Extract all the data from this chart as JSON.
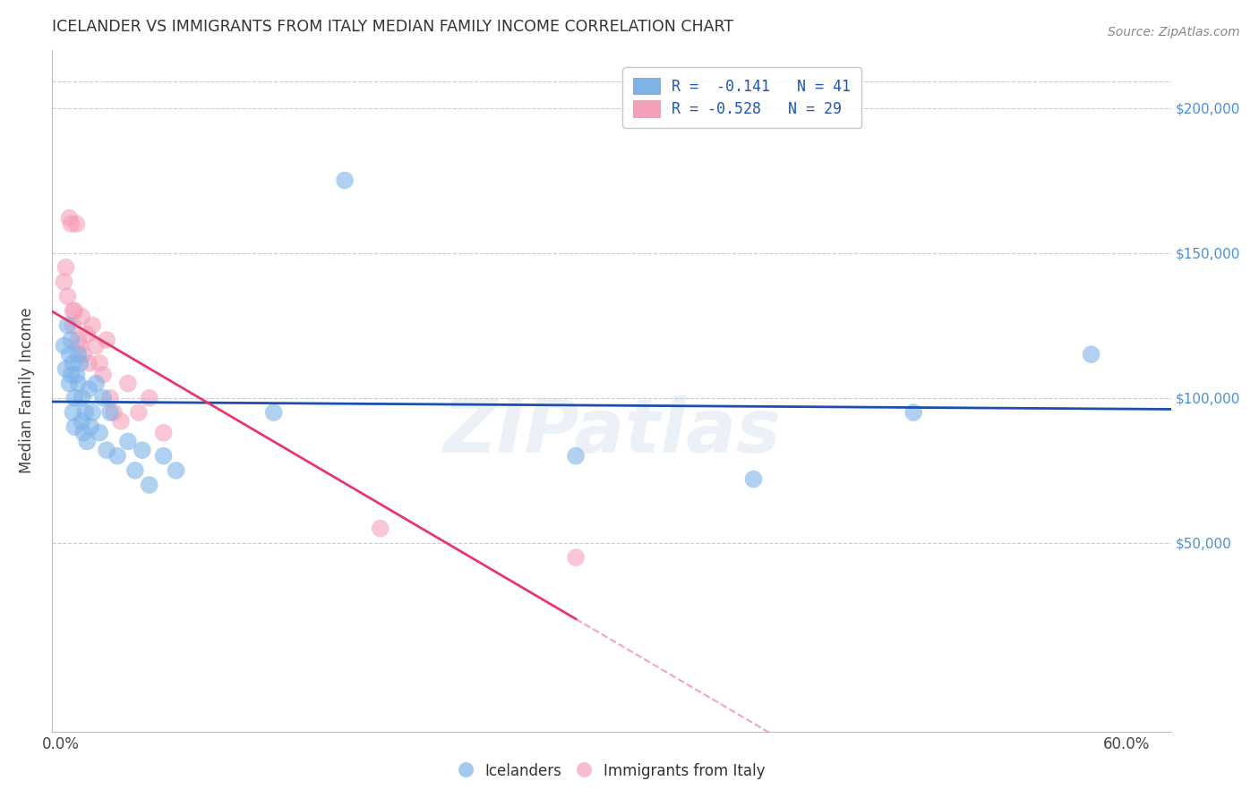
{
  "title": "ICELANDER VS IMMIGRANTS FROM ITALY MEDIAN FAMILY INCOME CORRELATION CHART",
  "source": "Source: ZipAtlas.com",
  "xlabel_edge_labels": [
    "0.0%",
    "60.0%"
  ],
  "xlabel_edge_vals": [
    0.0,
    0.6
  ],
  "xlabel_minor_vals": [
    0.1,
    0.2,
    0.3,
    0.4,
    0.5
  ],
  "ylabel_ticks": [
    "$50,000",
    "$100,000",
    "$150,000",
    "$200,000"
  ],
  "ylabel_vals": [
    50000,
    100000,
    150000,
    200000
  ],
  "xlim": [
    -0.005,
    0.625
  ],
  "ylim": [
    -15000,
    220000
  ],
  "watermark": "ZIPatlas",
  "legend_blue_r": "R =  -0.141",
  "legend_blue_n": "N = 41",
  "legend_pink_r": "R = -0.528",
  "legend_pink_n": "N = 29",
  "legend_blue_label": "Icelanders",
  "legend_pink_label": "Immigrants from Italy",
  "blue_color": "#7EB3E8",
  "pink_color": "#F4A0B8",
  "blue_line_color": "#1A4FAA",
  "pink_line_color": "#E8386A",
  "blue_x": [
    0.002,
    0.003,
    0.004,
    0.005,
    0.005,
    0.006,
    0.006,
    0.007,
    0.007,
    0.008,
    0.008,
    0.009,
    0.01,
    0.01,
    0.011,
    0.012,
    0.012,
    0.013,
    0.014,
    0.015,
    0.016,
    0.017,
    0.018,
    0.02,
    0.022,
    0.024,
    0.026,
    0.028,
    0.032,
    0.038,
    0.042,
    0.046,
    0.05,
    0.058,
    0.065,
    0.12,
    0.16,
    0.29,
    0.39,
    0.48,
    0.58
  ],
  "blue_y": [
    118000,
    110000,
    125000,
    115000,
    105000,
    108000,
    120000,
    112000,
    95000,
    100000,
    90000,
    108000,
    115000,
    105000,
    112000,
    100000,
    92000,
    88000,
    95000,
    85000,
    103000,
    90000,
    95000,
    105000,
    88000,
    100000,
    82000,
    95000,
    80000,
    85000,
    75000,
    82000,
    70000,
    80000,
    75000,
    95000,
    175000,
    80000,
    72000,
    95000,
    115000
  ],
  "pink_x": [
    0.002,
    0.003,
    0.004,
    0.005,
    0.006,
    0.007,
    0.007,
    0.008,
    0.009,
    0.01,
    0.011,
    0.012,
    0.013,
    0.015,
    0.016,
    0.018,
    0.02,
    0.022,
    0.024,
    0.026,
    0.028,
    0.03,
    0.034,
    0.038,
    0.044,
    0.05,
    0.058,
    0.18,
    0.29
  ],
  "pink_y": [
    140000,
    145000,
    135000,
    162000,
    160000,
    130000,
    125000,
    130000,
    160000,
    120000,
    118000,
    128000,
    115000,
    122000,
    112000,
    125000,
    118000,
    112000,
    108000,
    120000,
    100000,
    95000,
    92000,
    105000,
    95000,
    100000,
    88000,
    55000,
    45000
  ]
}
